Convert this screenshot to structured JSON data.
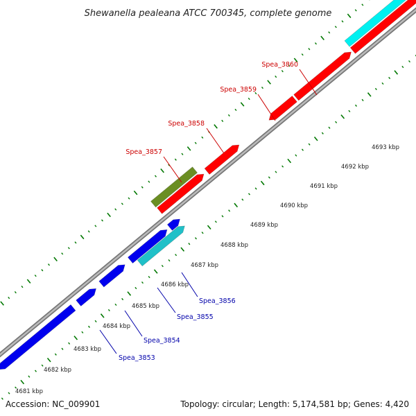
{
  "title": "Shewanella pealeana ATCC 700345, complete genome",
  "footer": {
    "accession": "Accession: NC_009901",
    "stats": "Topology: circular; Length: 5,174,581 bp; Genes: 4,420"
  },
  "colors": {
    "forward_cds": "#ff0000",
    "reverse_cds": "#0000ee",
    "forward_rna": "#00f0f0",
    "reverse_rna": "#20c0c8",
    "other_feature": "#6b8e23",
    "ticks": "#007700",
    "backbone": "#999999",
    "forward_label": "#cc0000",
    "reverse_label": "#0000aa"
  },
  "scale": {
    "unit": "kbp",
    "labels": [
      "4681 kbp",
      "4682 kbp",
      "4683 kbp",
      "4684 kbp",
      "4685 kbp",
      "4686 kbp",
      "4687 kbp",
      "4688 kbp",
      "4689 kbp",
      "4690 kbp",
      "4691 kbp",
      "4692 kbp",
      "4693 kbp"
    ]
  },
  "genes": [
    {
      "label": "Spea_3853",
      "strand": "reverse"
    },
    {
      "label": "Spea_3854",
      "strand": "reverse"
    },
    {
      "label": "Spea_3855",
      "strand": "reverse"
    },
    {
      "label": "Spea_3856",
      "strand": "reverse"
    },
    {
      "label": "Spea_3857",
      "strand": "forward"
    },
    {
      "label": "Spea_3858",
      "strand": "forward"
    },
    {
      "label": "Spea_3859",
      "strand": "forward"
    },
    {
      "label": "Spea_3860",
      "strand": "forward"
    }
  ]
}
